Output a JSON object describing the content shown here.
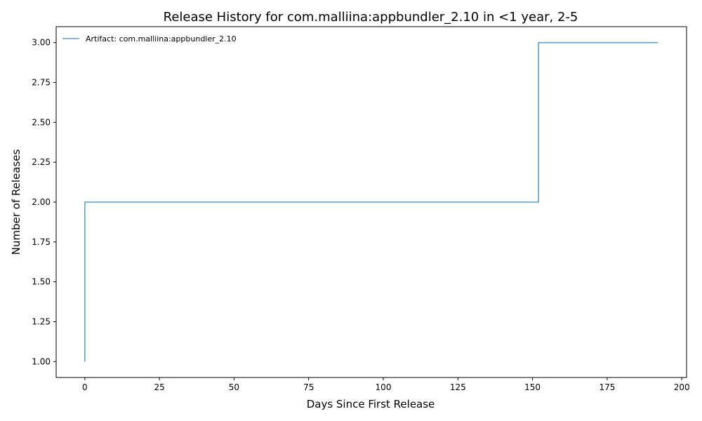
{
  "chart_data": {
    "type": "line",
    "title": "Release History for com.malliina:appbundler_2.10 in <1 year, 2-5",
    "xlabel": "Days Since First Release",
    "ylabel": "Number of Releases",
    "xlim": [
      -9.6,
      201.6
    ],
    "ylim": [
      0.9,
      3.1
    ],
    "x_ticks": [
      0,
      25,
      50,
      75,
      100,
      125,
      150,
      175,
      200
    ],
    "y_ticks": [
      1.0,
      1.25,
      1.5,
      1.75,
      2.0,
      2.25,
      2.5,
      2.75,
      3.0
    ],
    "x_tick_labels": [
      "0",
      "25",
      "50",
      "75",
      "100",
      "125",
      "150",
      "175",
      "200"
    ],
    "y_tick_labels": [
      "1.00",
      "1.25",
      "1.50",
      "1.75",
      "2.00",
      "2.25",
      "2.50",
      "2.75",
      "3.00"
    ],
    "grid": false,
    "legend_position": "top-left",
    "series": [
      {
        "name": "Artifact: com.malliina:appbundler_2.10",
        "color": "#5b9fd0",
        "step": "post",
        "x": [
          0,
          0,
          152,
          192
        ],
        "y": [
          1,
          2,
          3,
          3
        ]
      }
    ]
  }
}
